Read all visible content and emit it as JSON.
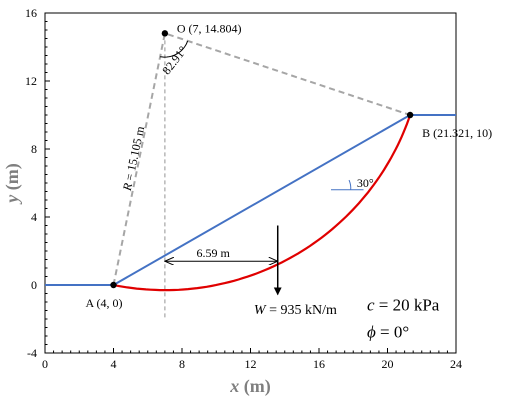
{
  "chart_data": {
    "type": "line",
    "xlabel": {
      "var": "x",
      "unit": " (m)"
    },
    "ylabel": {
      "var": "y",
      "unit": " (m)"
    },
    "xlim": [
      0,
      24
    ],
    "ylim": [
      -4,
      16
    ],
    "xticks": [
      0,
      4,
      8,
      12,
      16,
      20,
      24
    ],
    "yticks": [
      -4,
      0,
      4,
      8,
      12,
      16
    ],
    "grid": false,
    "colors": {
      "slope": "#4472c4",
      "slip": "#e00000",
      "guide": "#a6a6a6",
      "arrow": "#000000",
      "point": "#000000"
    },
    "slope_profile": {
      "x": [
        0,
        4,
        21.321,
        24
      ],
      "y": [
        0,
        0,
        10,
        10
      ]
    },
    "slip_circle": {
      "center": [
        7,
        14.804
      ],
      "radius": 15.105,
      "from": [
        4,
        0
      ],
      "to": [
        21.321,
        10
      ]
    },
    "radius_lines": {
      "x": [
        4,
        7,
        21.321
      ],
      "y": [
        0,
        14.804,
        10
      ]
    },
    "centre_vertical": {
      "x": 7,
      "y": [
        14.804,
        -2
      ]
    },
    "slope_angle_ref": {
      "x": [
        16.7,
        18.6
      ],
      "y": [
        5.6,
        5.6
      ]
    },
    "weight_arrow": {
      "x": 13.59,
      "y": [
        3.5,
        -0.55
      ]
    },
    "moment_arm": {
      "x": [
        7,
        13.59
      ],
      "y": 1.4
    },
    "points": [
      {
        "name": "A",
        "x": 4,
        "y": 0,
        "label": "A (4, 0)"
      },
      {
        "name": "B",
        "x": 21.321,
        "y": 10,
        "label": "B (21.321, 10)"
      },
      {
        "name": "O",
        "x": 7,
        "y": 14.804,
        "label": "O (7, 14.804)"
      }
    ],
    "annotations": {
      "radius": {
        "var": "R",
        "rest": " = 15.105 m"
      },
      "central_angle": "82.91°",
      "slope_angle": "30°",
      "lever_arm": "6.59 m",
      "weight": {
        "var": "W",
        "rest": " = 935 kN/m"
      },
      "cohesion": {
        "var": "c",
        "rest": " = 20 kPa"
      },
      "friction": {
        "var": "ϕ",
        "rest": " = 0°"
      }
    }
  }
}
